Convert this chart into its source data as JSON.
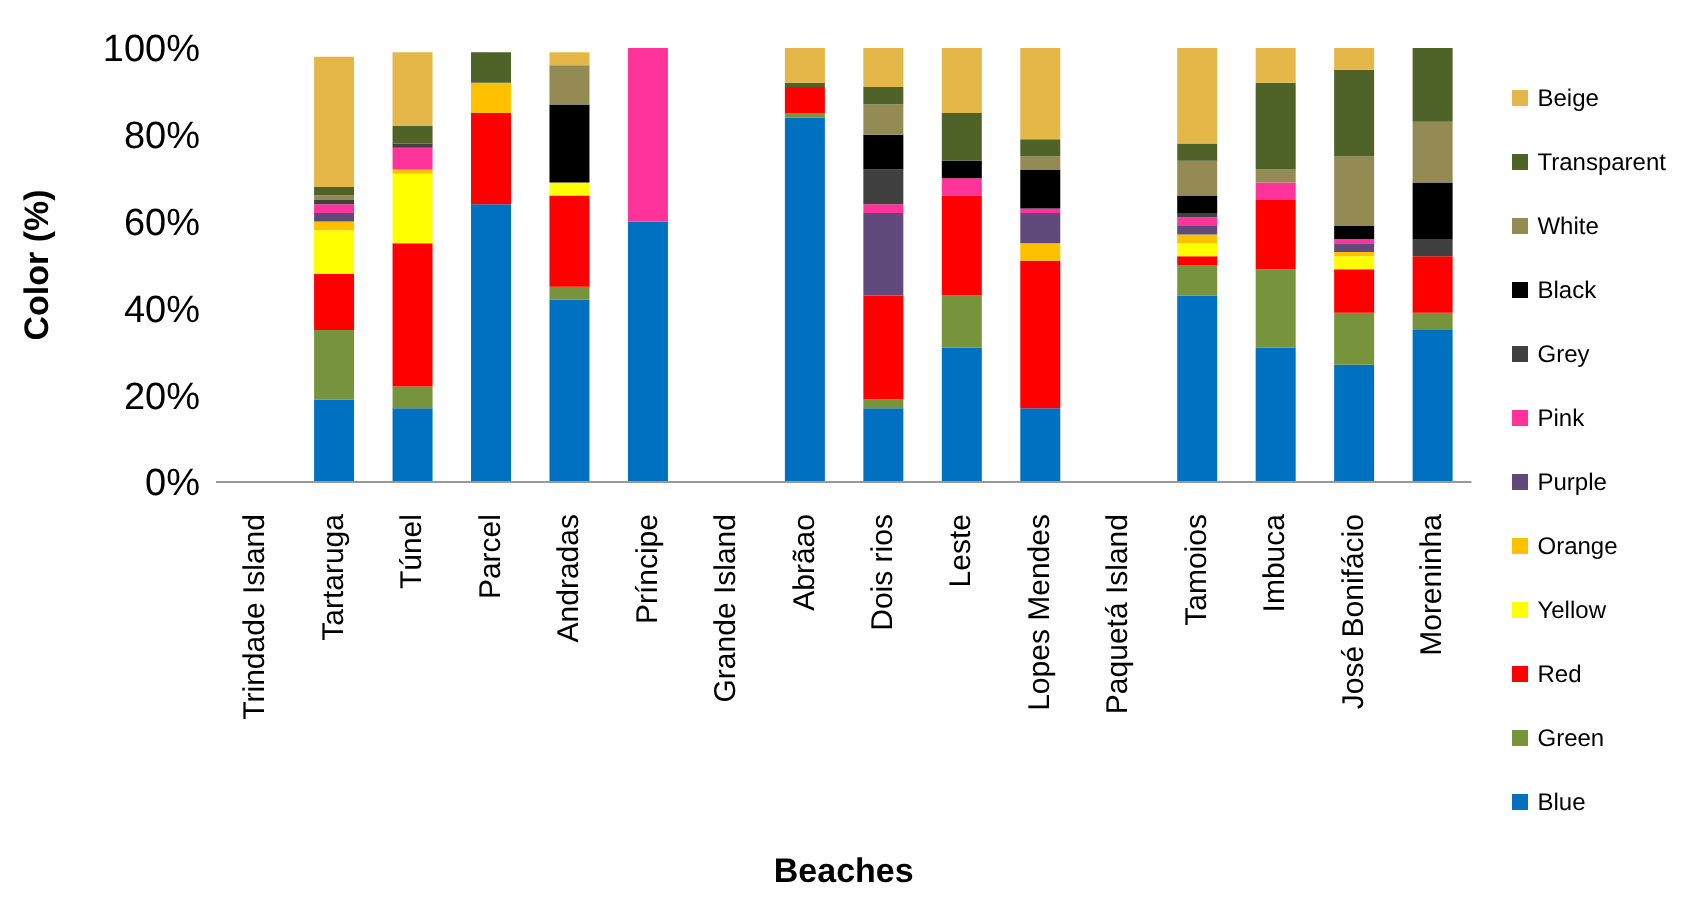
{
  "chart_data": {
    "type": "bar",
    "stacked": true,
    "xlabel": "Beaches",
    "ylabel": "Color (%)",
    "categories": [
      "Trindade Island",
      "Tartaruga",
      "Túnel",
      "Parcel",
      "Andradas",
      "Príncipe",
      "Grande Island",
      "Abrãao",
      "Dois rios",
      "Leste",
      "Lopes Mendes",
      "Paquetá Island",
      "Tamoios",
      "Imbuca",
      "José Bonifácio",
      "Moreninha"
    ],
    "ylim": [
      0,
      100
    ],
    "yticks": [
      {
        "value": 0,
        "label": "0%"
      },
      {
        "value": 20,
        "label": "20%"
      },
      {
        "value": 40,
        "label": "40%"
      },
      {
        "value": 60,
        "label": "60%"
      },
      {
        "value": 80,
        "label": "80%"
      },
      {
        "value": 100,
        "label": "100%"
      }
    ],
    "grid": false,
    "legend": "right",
    "series": [
      {
        "name": "Blue",
        "color": "#0070c0",
        "values": [
          0,
          19,
          17,
          64,
          42,
          60,
          0,
          84,
          17,
          31,
          17,
          0,
          43,
          31,
          27,
          35
        ]
      },
      {
        "name": "Green",
        "color": "#77933c",
        "values": [
          0,
          16,
          5,
          0,
          3,
          0,
          0,
          1,
          2,
          12,
          0,
          0,
          7,
          18,
          12,
          4
        ]
      },
      {
        "name": "Red",
        "color": "#ff0000",
        "values": [
          0,
          13,
          33,
          21,
          21,
          0,
          0,
          6,
          24,
          23,
          34,
          0,
          2,
          16,
          10,
          13
        ]
      },
      {
        "name": "Yellow",
        "color": "#ffff00",
        "values": [
          0,
          10,
          16,
          0,
          3,
          0,
          0,
          0,
          0,
          0,
          0,
          0,
          3,
          0,
          3,
          0
        ]
      },
      {
        "name": "Orange",
        "color": "#ffc000",
        "values": [
          0,
          2,
          1,
          7,
          0,
          0,
          0,
          0,
          0,
          0,
          4,
          0,
          2,
          0,
          1,
          0
        ]
      },
      {
        "name": "Purple",
        "color": "#604a7b",
        "values": [
          0,
          2,
          0,
          0,
          0,
          0,
          0,
          0,
          19,
          0,
          7,
          0,
          2,
          0,
          2,
          0
        ]
      },
      {
        "name": "Pink",
        "color": "#ff3399",
        "values": [
          0,
          2,
          5,
          0,
          0,
          40,
          0,
          0,
          2,
          4,
          1,
          0,
          2,
          4,
          1,
          0
        ]
      },
      {
        "name": "Grey",
        "color": "#404040",
        "values": [
          0,
          1,
          1,
          0,
          0,
          0,
          0,
          0,
          8,
          0,
          0,
          0,
          1,
          0,
          0,
          4
        ]
      },
      {
        "name": "Black",
        "color": "#000000",
        "values": [
          0,
          0,
          0,
          0,
          18,
          0,
          0,
          0,
          8,
          4,
          9,
          0,
          4,
          0,
          3,
          13
        ]
      },
      {
        "name": "White",
        "color": "#948a54",
        "values": [
          0,
          1,
          0,
          0,
          9,
          0,
          0,
          0,
          7,
          0,
          3,
          0,
          8,
          3,
          16,
          14
        ]
      },
      {
        "name": "Transparent",
        "color": "#4f6228",
        "values": [
          0,
          2,
          4,
          7,
          0,
          0,
          0,
          1,
          4,
          11,
          4,
          0,
          4,
          20,
          20,
          17
        ]
      },
      {
        "name": "Beige",
        "color": "#e4b748",
        "values": [
          0,
          30,
          17,
          0,
          3,
          0,
          0,
          8,
          9,
          15,
          21,
          0,
          22,
          8,
          5,
          0
        ]
      }
    ]
  }
}
